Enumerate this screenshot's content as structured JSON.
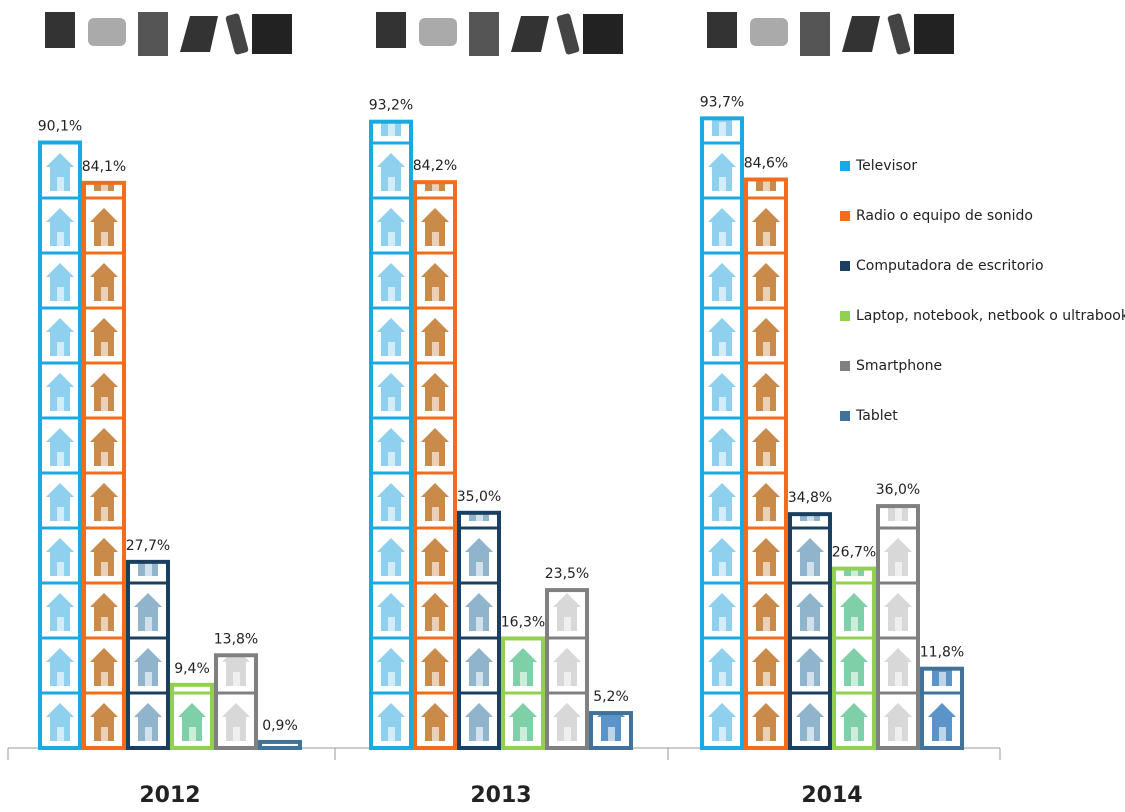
{
  "chart_data": {
    "type": "bar",
    "categories": [
      "2012",
      "2013",
      "2014"
    ],
    "series": [
      {
        "name": "Televisor",
        "color": "#1ba9e1",
        "values": [
          90.1,
          93.2,
          93.7
        ],
        "value_labels": [
          "90,1%",
          "93,2%",
          "93,7%"
        ]
      },
      {
        "name": "Radio o equipo de sonido",
        "color": "#f26c1c",
        "values": [
          84.1,
          84.2,
          84.6
        ],
        "value_labels": [
          "84,1%",
          "84,2%",
          "84,6%"
        ]
      },
      {
        "name": "Computadora de escritorio",
        "color": "#1b3f60",
        "values": [
          27.7,
          35.0,
          34.8
        ],
        "value_labels": [
          "27,7%",
          "35,0%",
          "34,8%"
        ]
      },
      {
        "name": "Laptop, notebook, netbook o ultrabook",
        "color": "#92d050",
        "values": [
          9.4,
          16.3,
          26.7
        ],
        "value_labels": [
          "9,4%",
          "16,3%",
          "26,7%"
        ]
      },
      {
        "name": "Smartphone",
        "color": "#808080",
        "values": [
          13.8,
          23.5,
          36.0
        ],
        "value_labels": [
          "13,8%",
          "23,5%",
          "36,0%"
        ]
      },
      {
        "name": "Tablet",
        "color": "#41739a",
        "values": [
          0.9,
          5.2,
          11.8
        ],
        "value_labels": [
          "0,9%",
          "5,2%",
          "11,8%"
        ]
      }
    ]
  }
}
